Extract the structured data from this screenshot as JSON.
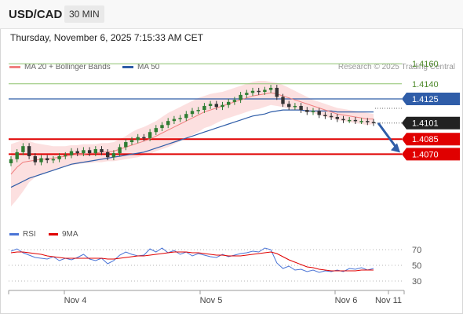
{
  "header": {
    "symbol": "USD/CAD",
    "timeframe": "30 MIN"
  },
  "timestamp": "Thursday, November 6, 2025 7:15:33 AM CET",
  "legend": {
    "ma20_bollinger": "MA 20 + Bollinger Bands",
    "ma50": "MA 50",
    "ma20_color": "#f08080",
    "ma50_color": "#2f5da8"
  },
  "copyright": "Research © 2025 Trading Central",
  "rsi_legend": {
    "rsi": "RSI",
    "ma9": "9MA",
    "rsi_color": "#4a74d6",
    "ma9_color": "#e00000"
  },
  "chart_data": [
    {
      "type": "line",
      "name": "price",
      "x_labels": [
        "Nov 4",
        "Nov 5",
        "Nov 6",
        "Nov 11"
      ],
      "levels": [
        {
          "value": 1.416,
          "label": "1.4160",
          "style": "green-line"
        },
        {
          "value": 1.414,
          "label": "1.4140",
          "style": "green-line"
        },
        {
          "value": 1.4125,
          "label": "1.4125",
          "style": "blue-tag"
        },
        {
          "value": 1.4101,
          "label": "1.4101",
          "style": "dark-tag"
        },
        {
          "value": 1.4085,
          "label": "1.4085",
          "style": "red-tag"
        },
        {
          "value": 1.407,
          "label": "1.4070",
          "style": "red-tag"
        }
      ],
      "ylim": [
        1.4,
        1.4175
      ],
      "close": [
        1.4065,
        1.4072,
        1.4078,
        1.4068,
        1.4062,
        1.4066,
        1.4064,
        1.4065,
        1.4068,
        1.4069,
        1.4073,
        1.4071,
        1.4074,
        1.4071,
        1.4075,
        1.4072,
        1.4067,
        1.4071,
        1.4077,
        1.4082,
        1.4084,
        1.4087,
        1.4086,
        1.4092,
        1.4096,
        1.4099,
        1.4103,
        1.4105,
        1.4106,
        1.411,
        1.4113,
        1.4114,
        1.4118,
        1.412,
        1.4117,
        1.4119,
        1.4122,
        1.4124,
        1.4129,
        1.4131,
        1.4133,
        1.4132,
        1.4134,
        1.4136,
        1.4127,
        1.412,
        1.4117,
        1.4118,
        1.4114,
        1.4112,
        1.4113,
        1.4109,
        1.4108,
        1.4107,
        1.4105,
        1.4104,
        1.4104,
        1.4103,
        1.4103,
        1.4102,
        1.4101
      ],
      "ma20": [
        1.405,
        1.4057,
        1.4062,
        1.4063,
        1.4064,
        1.4065,
        1.4065,
        1.4066,
        1.4067,
        1.4068,
        1.4069,
        1.407,
        1.407,
        1.4071,
        1.4071,
        1.4072,
        1.4072,
        1.4073,
        1.4075,
        1.4077,
        1.4079,
        1.4081,
        1.4083,
        1.4085,
        1.4088,
        1.4091,
        1.4094,
        1.4097,
        1.41,
        1.4103,
        1.4106,
        1.4109,
        1.4112,
        1.4114,
        1.4116,
        1.4118,
        1.412,
        1.4122,
        1.4124,
        1.4126,
        1.4128,
        1.4129,
        1.413,
        1.4131,
        1.413,
        1.4128,
        1.4126,
        1.4124,
        1.4122,
        1.412,
        1.4118,
        1.4116,
        1.4114,
        1.4112,
        1.411,
        1.4109,
        1.4108,
        1.4107,
        1.4106,
        1.4105,
        1.4105
      ],
      "ma50": [
        1.4037,
        1.404,
        1.4043,
        1.4046,
        1.4048,
        1.405,
        1.4052,
        1.4054,
        1.4056,
        1.4058,
        1.406,
        1.4061,
        1.4062,
        1.4063,
        1.4064,
        1.4065,
        1.4066,
        1.4067,
        1.4068,
        1.4069,
        1.407,
        1.4071,
        1.4072,
        1.4074,
        1.4076,
        1.4078,
        1.408,
        1.4082,
        1.4084,
        1.4086,
        1.4088,
        1.409,
        1.4092,
        1.4094,
        1.4096,
        1.4098,
        1.41,
        1.4102,
        1.4104,
        1.4106,
        1.4108,
        1.4109,
        1.411,
        1.4112,
        1.4113,
        1.4114,
        1.4114,
        1.4114,
        1.4114,
        1.4113,
        1.4113,
        1.4113,
        1.4113,
        1.4113,
        1.4112,
        1.4112,
        1.4112,
        1.4112,
        1.4112,
        1.4112,
        1.4112
      ],
      "band_upper": [
        1.408,
        1.4082,
        1.4084,
        1.4083,
        1.4081,
        1.408,
        1.4079,
        1.4078,
        1.4078,
        1.4078,
        1.4079,
        1.4079,
        1.408,
        1.408,
        1.408,
        1.4081,
        1.4081,
        1.4082,
        1.4085,
        1.4088,
        1.4092,
        1.4095,
        1.4097,
        1.41,
        1.4103,
        1.4107,
        1.4111,
        1.4114,
        1.4117,
        1.412,
        1.4123,
        1.4126,
        1.4128,
        1.413,
        1.4131,
        1.4132,
        1.4134,
        1.4136,
        1.4138,
        1.414,
        1.4142,
        1.4143,
        1.4143,
        1.4142,
        1.4141,
        1.4139,
        1.4136,
        1.4133,
        1.413,
        1.4127,
        1.4124,
        1.4122,
        1.412,
        1.4118,
        1.4116,
        1.4115,
        1.4114,
        1.4113,
        1.4112,
        1.4111,
        1.411
      ],
      "band_lower": [
        1.4018,
        1.4025,
        1.4033,
        1.4042,
        1.4047,
        1.405,
        1.4052,
        1.4054,
        1.4056,
        1.4058,
        1.4059,
        1.406,
        1.4061,
        1.4061,
        1.4062,
        1.4062,
        1.4063,
        1.4063,
        1.4064,
        1.4065,
        1.4066,
        1.4067,
        1.4069,
        1.407,
        1.4073,
        1.4075,
        1.4077,
        1.408,
        1.4083,
        1.4086,
        1.4089,
        1.4092,
        1.4096,
        1.4098,
        1.4101,
        1.4104,
        1.4106,
        1.4108,
        1.411,
        1.4112,
        1.4114,
        1.4115,
        1.4117,
        1.4119,
        1.4118,
        1.4117,
        1.4115,
        1.4114,
        1.4113,
        1.4112,
        1.4111,
        1.4109,
        1.4107,
        1.4106,
        1.4104,
        1.4103,
        1.4102,
        1.4101,
        1.41,
        1.4099,
        1.41
      ],
      "forecast": {
        "from": 1.4101,
        "to": 1.407,
        "direction": "down"
      },
      "colors": {
        "up": "#2e7d32",
        "down": "#333333",
        "band": "#fbdada",
        "ma20": "#f08080",
        "ma50": "#2f5da8",
        "green_level": "#8dc26f",
        "blue_level": "#2f5da8",
        "red_level": "#e00000",
        "dark_tag": "#222222",
        "arrow": "#2f5da8"
      }
    },
    {
      "type": "line",
      "name": "RSI",
      "ylim": [
        20,
        80
      ],
      "gridlines": [
        70,
        50,
        30
      ],
      "tick_labels": [
        "70",
        "50",
        "30"
      ],
      "series": [
        {
          "name": "RSI",
          "values": [
            68,
            71,
            66,
            63,
            60,
            59,
            58,
            61,
            56,
            59,
            57,
            60,
            64,
            58,
            56,
            59,
            52,
            56,
            63,
            67,
            64,
            62,
            63,
            71,
            67,
            72,
            66,
            69,
            64,
            67,
            62,
            65,
            63,
            61,
            60,
            64,
            61,
            63,
            65,
            66,
            68,
            67,
            72,
            70,
            53,
            46,
            49,
            44,
            45,
            42,
            44,
            41,
            43,
            42,
            44,
            42,
            46,
            45,
            47,
            44,
            46
          ]
        },
        {
          "name": "9MA",
          "values": [
            66,
            67,
            67,
            66,
            65,
            64,
            62,
            61,
            60,
            59,
            59,
            59,
            59,
            59,
            59,
            59,
            58,
            58,
            59,
            60,
            61,
            62,
            62,
            63,
            64,
            65,
            66,
            67,
            67,
            67,
            66,
            66,
            65,
            64,
            63,
            63,
            62,
            62,
            62,
            63,
            64,
            65,
            66,
            67,
            65,
            61,
            57,
            54,
            51,
            48,
            47,
            45,
            44,
            43,
            43,
            43,
            43,
            43,
            44,
            44,
            44
          ]
        }
      ]
    }
  ]
}
